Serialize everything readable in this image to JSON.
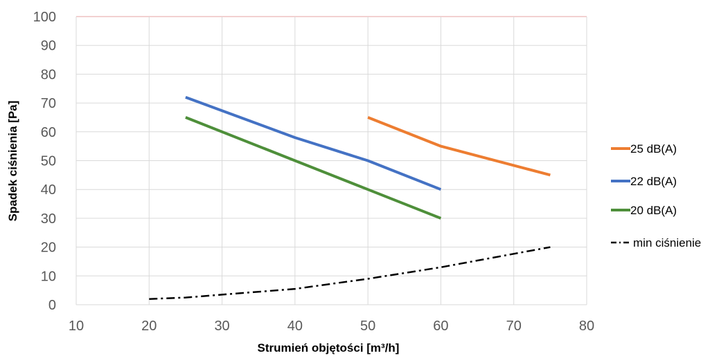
{
  "chart_data": {
    "type": "line",
    "xlabel": "Strumień objętości [m³/h]",
    "ylabel": "Spadek ciśnienia [Pa]",
    "xlim": [
      10,
      80
    ],
    "ylim": [
      0,
      100
    ],
    "x_ticks": [
      "10",
      "20",
      "30",
      "40",
      "50",
      "60",
      "70",
      "80"
    ],
    "y_ticks": [
      "0",
      "10",
      "20",
      "30",
      "40",
      "50",
      "60",
      "70",
      "80",
      "90",
      "100"
    ],
    "grid": "both",
    "legend_position": "right",
    "series": [
      {
        "name": "25 dB(A)",
        "color": "#ED7D31",
        "style": "solid",
        "points": [
          [
            50,
            65
          ],
          [
            60,
            55
          ],
          [
            75,
            45
          ]
        ]
      },
      {
        "name": "22 dB(A)",
        "color": "#4472C4",
        "style": "solid",
        "points": [
          [
            25,
            72
          ],
          [
            40,
            58
          ],
          [
            50,
            50
          ],
          [
            60,
            40
          ]
        ]
      },
      {
        "name": "20 dB(A)",
        "color": "#4E8F3A",
        "style": "solid",
        "points": [
          [
            25,
            65
          ],
          [
            40,
            50
          ],
          [
            50,
            40
          ],
          [
            60,
            30
          ]
        ]
      },
      {
        "name": "min ciśnienie",
        "color": "#000000",
        "style": "dash-dot",
        "points": [
          [
            20,
            2
          ],
          [
            25,
            2.5
          ],
          [
            30,
            3.5
          ],
          [
            40,
            5.5
          ],
          [
            50,
            9
          ],
          [
            60,
            13
          ],
          [
            75,
            20
          ]
        ]
      }
    ]
  }
}
